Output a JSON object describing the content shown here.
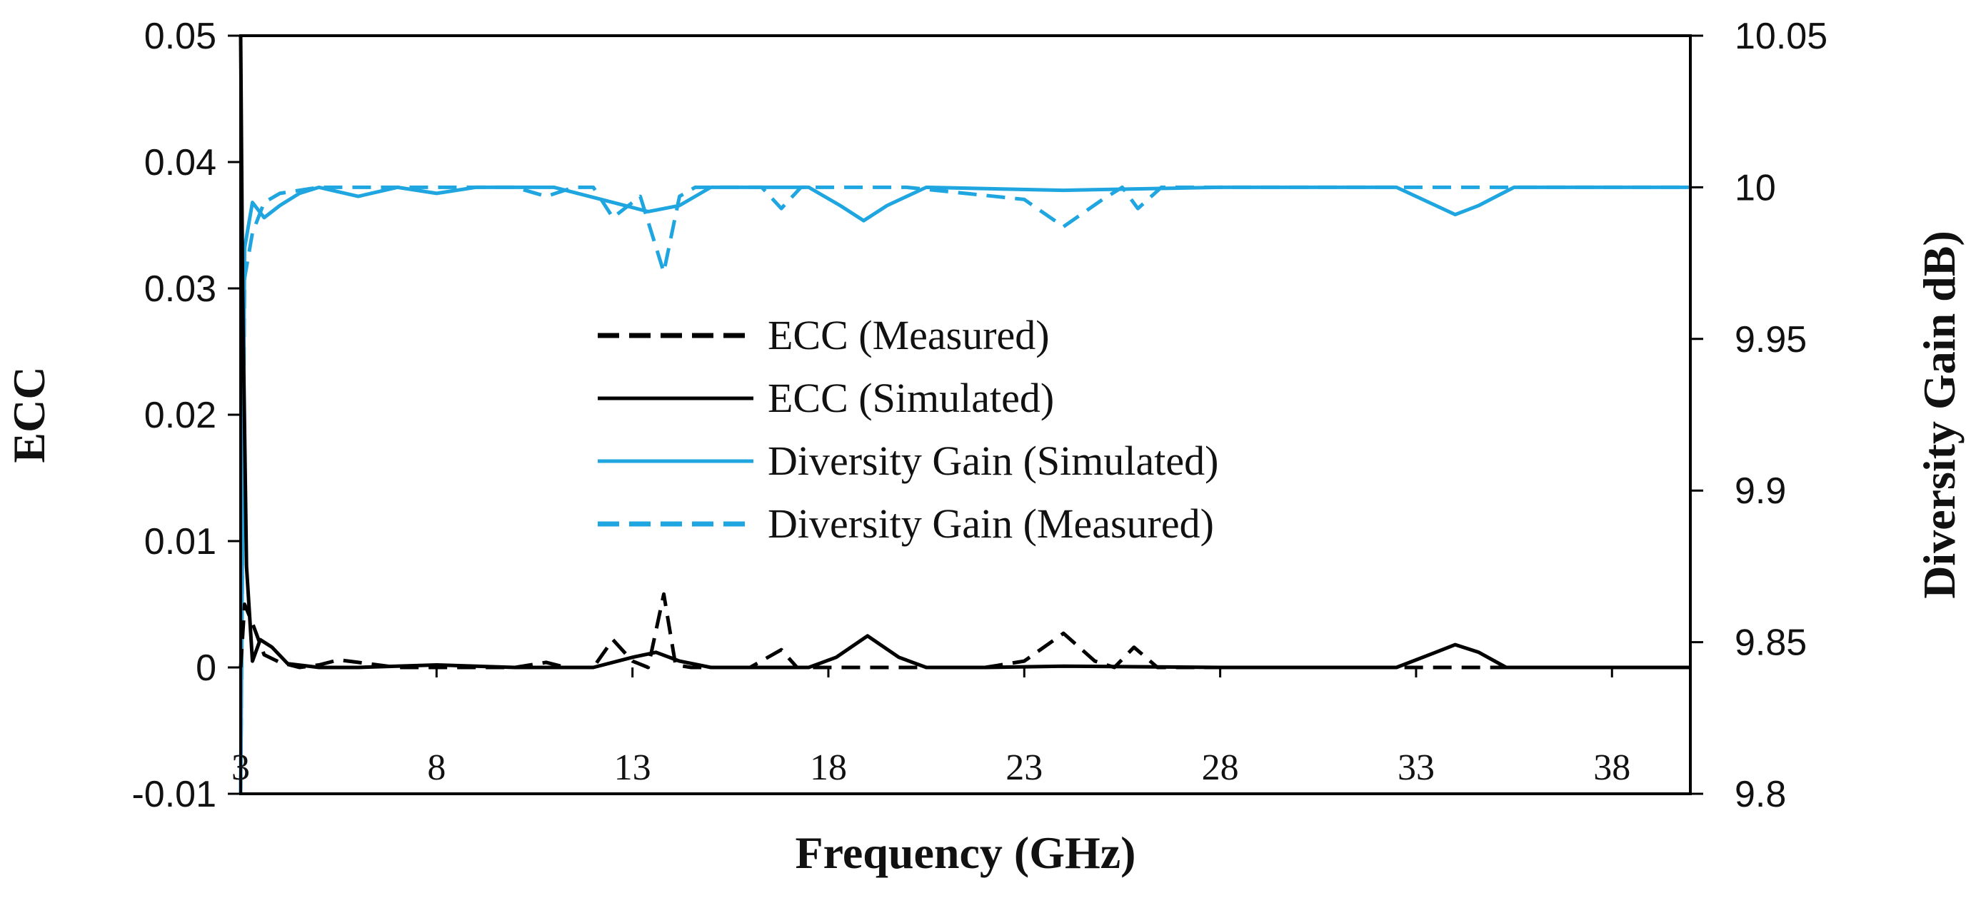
{
  "chart_data": {
    "type": "line",
    "title": "",
    "xlabel": "Frequency (GHz)",
    "ylabel_left": "ECC",
    "ylabel_right": "Diversity Gain dB)",
    "xlim": [
      3,
      40
    ],
    "ylim_left": [
      -0.01,
      0.05
    ],
    "ylim_right": [
      9.8,
      10.05
    ],
    "x_ticks": [
      "3",
      "8",
      "13",
      "18",
      "23",
      "28",
      "33",
      "38"
    ],
    "y_ticks_left": [
      "0.05",
      "0.04",
      "0.03",
      "0.02",
      "0.01",
      "0",
      "-0.01"
    ],
    "y_ticks_right": [
      "10.05",
      "10",
      "9.95",
      "9.9",
      "9.85",
      "9.8"
    ],
    "legend_position": "center",
    "series": [
      {
        "name": "ECC (Measured)",
        "axis": "left",
        "color": "#000000",
        "dash": "dashed",
        "points": [
          [
            3.0,
            0.0
          ],
          [
            3.1,
            0.005
          ],
          [
            3.3,
            0.0035
          ],
          [
            3.6,
            0.001
          ],
          [
            4.0,
            0.0004
          ],
          [
            4.5,
            0.0
          ],
          [
            5.0,
            0.0002
          ],
          [
            5.5,
            0.0006
          ],
          [
            6.0,
            0.0004
          ],
          [
            7.0,
            0.0
          ],
          [
            8.0,
            0.0
          ],
          [
            9.0,
            0.0
          ],
          [
            10.0,
            0.0
          ],
          [
            10.8,
            0.0004
          ],
          [
            11.3,
            0.0
          ],
          [
            12.0,
            0.0
          ],
          [
            12.5,
            0.0022
          ],
          [
            13.0,
            0.0005
          ],
          [
            13.4,
            0.0
          ],
          [
            13.8,
            0.0058
          ],
          [
            14.1,
            0.0002
          ],
          [
            14.5,
            0.0
          ],
          [
            16.0,
            0.0
          ],
          [
            16.8,
            0.0014
          ],
          [
            17.2,
            0.0
          ],
          [
            18.0,
            0.0
          ],
          [
            20.0,
            0.0
          ],
          [
            22.0,
            0.0
          ],
          [
            23.0,
            0.0005
          ],
          [
            24.0,
            0.0027
          ],
          [
            24.8,
            0.0005
          ],
          [
            25.3,
            0.0
          ],
          [
            25.8,
            0.0016
          ],
          [
            26.4,
            0.0
          ],
          [
            27.0,
            0.0
          ],
          [
            30.0,
            0.0
          ],
          [
            35.0,
            0.0
          ],
          [
            40.0,
            0.0
          ]
        ]
      },
      {
        "name": "ECC (Simulated)",
        "axis": "left",
        "color": "#000000",
        "dash": "solid",
        "points": [
          [
            3.0,
            0.05
          ],
          [
            3.05,
            0.03
          ],
          [
            3.15,
            0.008
          ],
          [
            3.3,
            0.0005
          ],
          [
            3.5,
            0.0022
          ],
          [
            3.8,
            0.0016
          ],
          [
            4.2,
            0.0003
          ],
          [
            5.0,
            0.0
          ],
          [
            6.0,
            0.0
          ],
          [
            8.0,
            0.0002
          ],
          [
            10.0,
            0.0
          ],
          [
            12.0,
            0.0
          ],
          [
            13.0,
            0.0008
          ],
          [
            13.6,
            0.0012
          ],
          [
            14.2,
            0.0005
          ],
          [
            15.0,
            0.0
          ],
          [
            17.5,
            0.0
          ],
          [
            18.2,
            0.0008
          ],
          [
            19.0,
            0.0025
          ],
          [
            19.8,
            0.0008
          ],
          [
            20.5,
            0.0
          ],
          [
            22.0,
            0.0
          ],
          [
            24.0,
            0.0001
          ],
          [
            28.0,
            0.0
          ],
          [
            32.5,
            0.0
          ],
          [
            33.5,
            0.0012
          ],
          [
            34.0,
            0.0018
          ],
          [
            34.6,
            0.0012
          ],
          [
            35.3,
            0.0
          ],
          [
            37.0,
            0.0
          ],
          [
            40.0,
            0.0
          ]
        ]
      },
      {
        "name": "Diversity Gain (Simulated)",
        "axis": "right",
        "color": "#1fa6e0",
        "dash": "solid",
        "points": [
          [
            3.0,
            9.8
          ],
          [
            3.1,
            9.98
          ],
          [
            3.3,
            9.995
          ],
          [
            3.6,
            9.99
          ],
          [
            4.0,
            9.994
          ],
          [
            4.5,
            9.998
          ],
          [
            5.0,
            10.0
          ],
          [
            6.0,
            9.997
          ],
          [
            7.0,
            10.0
          ],
          [
            8.0,
            9.998
          ],
          [
            9.0,
            10.0
          ],
          [
            11.0,
            10.0
          ],
          [
            12.5,
            9.995
          ],
          [
            13.4,
            9.992
          ],
          [
            14.2,
            9.994
          ],
          [
            15.0,
            10.0
          ],
          [
            17.5,
            10.0
          ],
          [
            18.3,
            9.994
          ],
          [
            18.9,
            9.989
          ],
          [
            19.5,
            9.994
          ],
          [
            20.5,
            10.0
          ],
          [
            24.0,
            9.999
          ],
          [
            28.0,
            10.0
          ],
          [
            32.5,
            10.0
          ],
          [
            33.5,
            9.994
          ],
          [
            34.0,
            9.991
          ],
          [
            34.6,
            9.994
          ],
          [
            35.5,
            10.0
          ],
          [
            40.0,
            10.0
          ]
        ]
      },
      {
        "name": "Diversity Gain (Measured)",
        "axis": "right",
        "color": "#1fa6e0",
        "dash": "dashed",
        "points": [
          [
            3.0,
            9.8
          ],
          [
            3.1,
            9.97
          ],
          [
            3.3,
            9.985
          ],
          [
            3.6,
            9.995
          ],
          [
            4.0,
            9.998
          ],
          [
            5.0,
            10.0
          ],
          [
            7.0,
            10.0
          ],
          [
            10.0,
            10.0
          ],
          [
            10.8,
            9.997
          ],
          [
            11.5,
            10.0
          ],
          [
            12.0,
            10.0
          ],
          [
            12.5,
            9.99
          ],
          [
            13.2,
            9.997
          ],
          [
            13.8,
            9.972
          ],
          [
            14.2,
            9.997
          ],
          [
            14.6,
            10.0
          ],
          [
            16.3,
            10.0
          ],
          [
            16.8,
            9.993
          ],
          [
            17.3,
            10.0
          ],
          [
            20.0,
            10.0
          ],
          [
            23.0,
            9.996
          ],
          [
            24.0,
            9.987
          ],
          [
            25.0,
            9.996
          ],
          [
            25.5,
            10.0
          ],
          [
            25.9,
            9.993
          ],
          [
            26.5,
            10.0
          ],
          [
            30.0,
            10.0
          ],
          [
            40.0,
            10.0
          ]
        ]
      }
    ]
  }
}
